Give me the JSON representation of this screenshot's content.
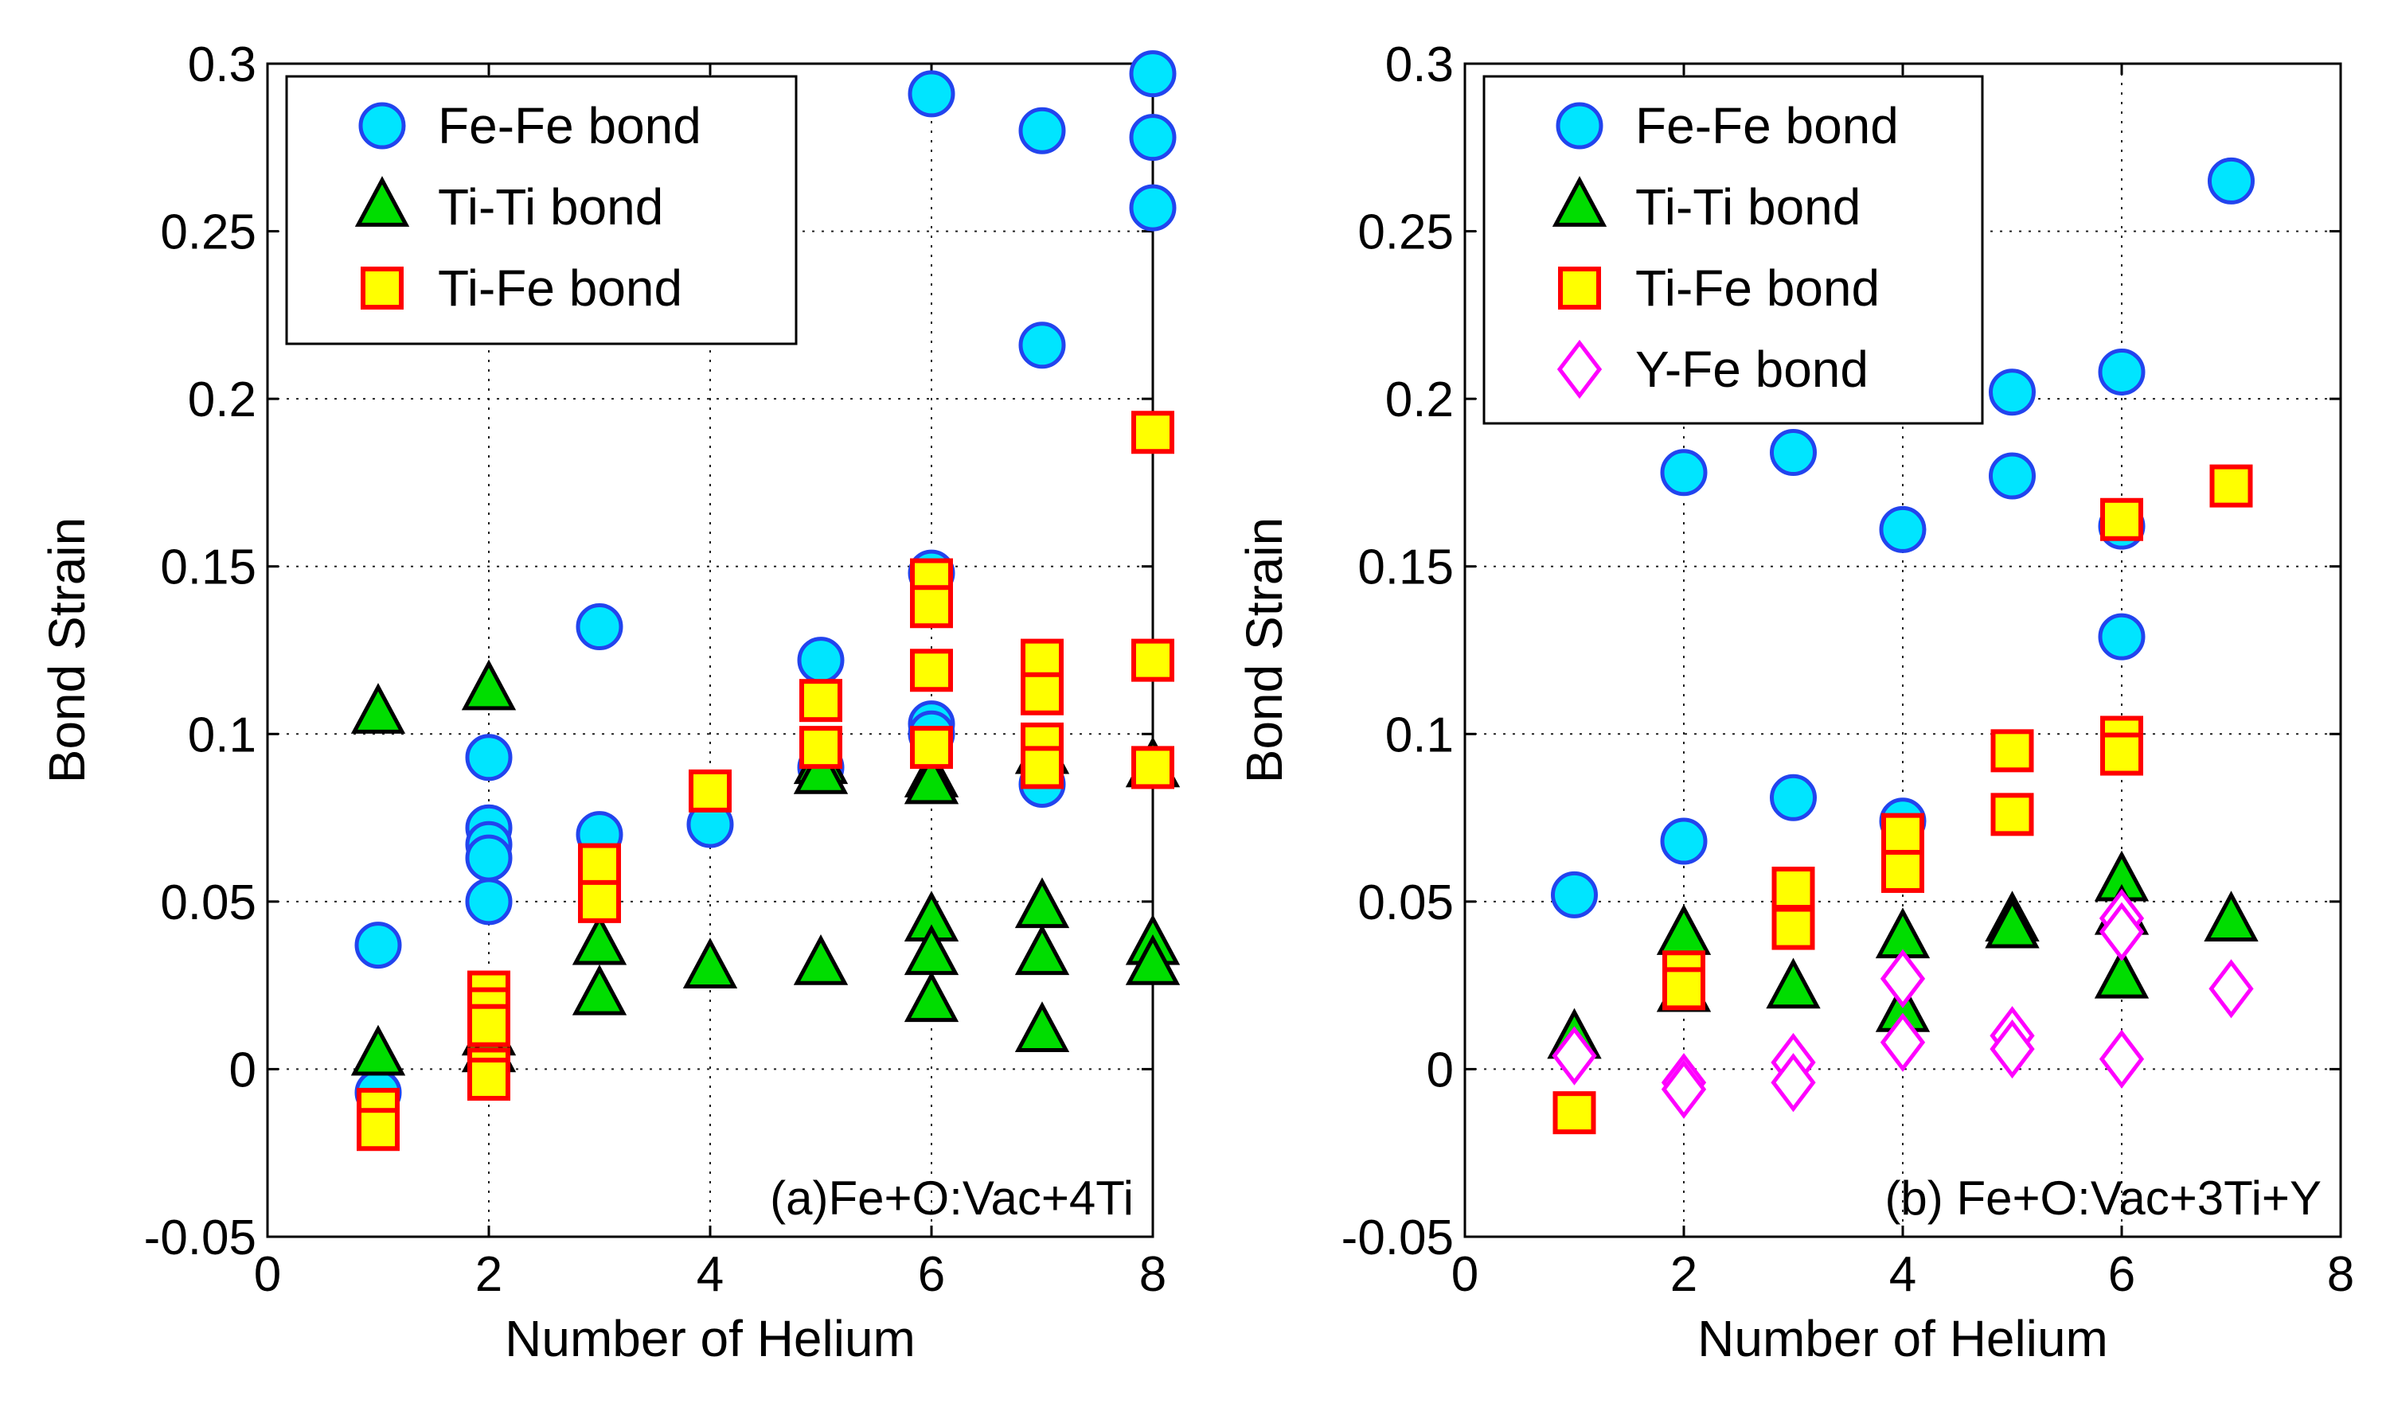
{
  "chart_data": [
    {
      "type": "scatter",
      "title": "",
      "annotation": "(a)Fe+O:Vac+4Ti",
      "xlabel": "Number of Helium",
      "ylabel": "Bond Strain",
      "xlim": [
        0,
        8
      ],
      "ylim": [
        -0.05,
        0.3
      ],
      "xticks": [
        0,
        2,
        4,
        6,
        8
      ],
      "yticks": [
        -0.05,
        0,
        0.05,
        0.1,
        0.15,
        0.2,
        0.25,
        0.3
      ],
      "grid": true,
      "legend_position": "top-left",
      "series": [
        {
          "name": "Fe-Fe bond",
          "marker": "circle",
          "fill": "#00e5ff",
          "stroke": "#2244ee",
          "points": [
            [
              1,
              0.037
            ],
            [
              1,
              -0.007
            ],
            [
              2,
              0.093
            ],
            [
              2,
              0.072
            ],
            [
              2,
              0.067
            ],
            [
              2,
              0.063
            ],
            [
              2,
              0.05
            ],
            [
              3,
              0.132
            ],
            [
              3,
              0.07
            ],
            [
              4,
              0.073
            ],
            [
              5,
              0.122
            ],
            [
              5,
              0.09
            ],
            [
              6,
              0.291
            ],
            [
              6,
              0.148
            ],
            [
              6,
              0.103
            ],
            [
              6,
              0.1
            ],
            [
              7,
              0.28
            ],
            [
              7,
              0.216
            ],
            [
              7,
              0.085
            ],
            [
              8,
              0.297
            ],
            [
              8,
              0.278
            ],
            [
              8,
              0.257
            ]
          ]
        },
        {
          "name": "Ti-Ti bond",
          "marker": "triangle",
          "fill": "#00dd00",
          "stroke": "#000000",
          "points": [
            [
              1,
              0.106
            ],
            [
              1,
              0.004
            ],
            [
              2,
              0.113
            ],
            [
              2,
              0.01
            ],
            [
              2,
              0.005
            ],
            [
              3,
              0.037
            ],
            [
              3,
              0.022
            ],
            [
              4,
              0.03
            ],
            [
              5,
              0.091
            ],
            [
              5,
              0.088
            ],
            [
              5,
              0.031
            ],
            [
              6,
              0.087
            ],
            [
              6,
              0.085
            ],
            [
              6,
              0.044
            ],
            [
              6,
              0.034
            ],
            [
              6,
              0.02
            ],
            [
              7,
              0.094
            ],
            [
              7,
              0.048
            ],
            [
              7,
              0.034
            ],
            [
              7,
              0.011
            ],
            [
              8,
              0.09
            ],
            [
              8,
              0.037
            ],
            [
              8,
              0.031
            ]
          ]
        },
        {
          "name": "Ti-Fe bond",
          "marker": "square",
          "fill": "#ffff00",
          "stroke": "#ff0000",
          "points": [
            [
              1,
              -0.012
            ],
            [
              1,
              -0.018
            ],
            [
              2,
              0.023
            ],
            [
              2,
              0.018
            ],
            [
              2,
              0.013
            ],
            [
              2,
              0.0
            ],
            [
              2,
              -0.003
            ],
            [
              3,
              0.061
            ],
            [
              3,
              0.05
            ],
            [
              4,
              0.083
            ],
            [
              5,
              0.11
            ],
            [
              5,
              0.096
            ],
            [
              6,
              0.146
            ],
            [
              6,
              0.138
            ],
            [
              6,
              0.119
            ],
            [
              6,
              0.096
            ],
            [
              7,
              0.122
            ],
            [
              7,
              0.112
            ],
            [
              7,
              0.097
            ],
            [
              7,
              0.09
            ],
            [
              8,
              0.19
            ],
            [
              8,
              0.122
            ],
            [
              8,
              0.09
            ]
          ]
        }
      ]
    },
    {
      "type": "scatter",
      "title": "",
      "annotation": "(b) Fe+O:Vac+3Ti+Y",
      "xlabel": "Number of Helium",
      "ylabel": "Bond Strain",
      "xlim": [
        0,
        8
      ],
      "ylim": [
        -0.05,
        0.3
      ],
      "xticks": [
        0,
        2,
        4,
        6,
        8
      ],
      "yticks": [
        -0.05,
        0,
        0.05,
        0.1,
        0.15,
        0.2,
        0.25,
        0.3
      ],
      "grid": true,
      "legend_position": "top-left",
      "series": [
        {
          "name": "Fe-Fe bond",
          "marker": "circle",
          "fill": "#00e5ff",
          "stroke": "#2244ee",
          "points": [
            [
              1,
              0.052
            ],
            [
              2,
              0.178
            ],
            [
              2,
              0.068
            ],
            [
              3,
              0.184
            ],
            [
              3,
              0.081
            ],
            [
              4,
              0.161
            ],
            [
              4,
              0.074
            ],
            [
              5,
              0.202
            ],
            [
              5,
              0.177
            ],
            [
              6,
              0.208
            ],
            [
              6,
              0.162
            ],
            [
              6,
              0.129
            ],
            [
              7,
              0.265
            ]
          ]
        },
        {
          "name": "Ti-Ti bond",
          "marker": "triangle",
          "fill": "#00dd00",
          "stroke": "#000000",
          "points": [
            [
              1,
              0.009
            ],
            [
              2,
              0.04
            ],
            [
              2,
              0.023
            ],
            [
              3,
              0.024
            ],
            [
              4,
              0.039
            ],
            [
              4,
              0.017
            ],
            [
              5,
              0.044
            ],
            [
              5,
              0.042
            ],
            [
              6,
              0.056
            ],
            [
              6,
              0.046
            ],
            [
              6,
              0.027
            ],
            [
              7,
              0.044
            ]
          ]
        },
        {
          "name": "Ti-Fe bond",
          "marker": "square",
          "fill": "#ffff00",
          "stroke": "#ff0000",
          "points": [
            [
              1,
              -0.013
            ],
            [
              2,
              0.029
            ],
            [
              2,
              0.024
            ],
            [
              3,
              0.054
            ],
            [
              3,
              0.042
            ],
            [
              4,
              0.07
            ],
            [
              4,
              0.059
            ],
            [
              5,
              0.095
            ],
            [
              5,
              0.076
            ],
            [
              6,
              0.164
            ],
            [
              6,
              0.099
            ],
            [
              6,
              0.094
            ],
            [
              7,
              0.174
            ]
          ]
        },
        {
          "name": "Y-Fe bond",
          "marker": "diamond",
          "fill": "#ffffff",
          "stroke": "#ff00ff",
          "points": [
            [
              1,
              0.004
            ],
            [
              2,
              -0.004
            ],
            [
              2,
              -0.006
            ],
            [
              3,
              0.002
            ],
            [
              3,
              -0.004
            ],
            [
              4,
              0.027
            ],
            [
              4,
              0.008
            ],
            [
              5,
              0.01
            ],
            [
              5,
              0.006
            ],
            [
              6,
              0.045
            ],
            [
              6,
              0.041
            ],
            [
              6,
              0.003
            ],
            [
              7,
              0.024
            ]
          ]
        }
      ]
    }
  ]
}
